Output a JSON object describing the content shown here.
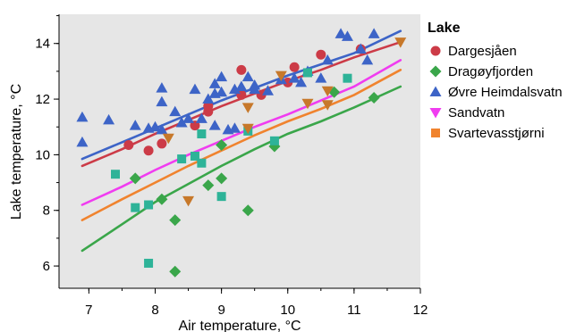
{
  "chart_data": {
    "type": "scatter",
    "xlabel": "Air temperature, °C",
    "ylabel": "Lake temperature, °C",
    "xlim": [
      6.55,
      12
    ],
    "ylim": [
      5.2,
      15.05
    ],
    "xticks": [
      7,
      8,
      9,
      10,
      11,
      12
    ],
    "yticks": [
      6,
      8,
      10,
      12,
      14
    ],
    "grid": false,
    "legend_title": "Lake",
    "legend_position": "right",
    "series": [
      {
        "name": "Dargesjåen",
        "marker": "circle",
        "color": "#cc3b47",
        "points": [
          [
            7.6,
            10.35
          ],
          [
            7.9,
            10.15
          ],
          [
            8.1,
            10.4
          ],
          [
            8.6,
            11.05
          ],
          [
            8.8,
            11.55
          ],
          [
            8.8,
            11.75
          ],
          [
            9.3,
            13.05
          ],
          [
            9.3,
            12.15
          ],
          [
            9.6,
            12.15
          ],
          [
            10.0,
            12.6
          ],
          [
            10.1,
            13.15
          ],
          [
            10.5,
            13.6
          ],
          [
            11.1,
            13.8
          ]
        ],
        "trend": [
          [
            6.9,
            9.6
          ],
          [
            7.5,
            10.2
          ],
          [
            8.0,
            10.75
          ],
          [
            8.5,
            11.25
          ],
          [
            9.0,
            11.75
          ],
          [
            9.5,
            12.2
          ],
          [
            10.0,
            12.65
          ],
          [
            10.5,
            13.05
          ],
          [
            11.0,
            13.5
          ],
          [
            11.7,
            14.05
          ]
        ]
      },
      {
        "name": "Dragøyfjorden",
        "marker": "diamond",
        "color": "#3aa64a",
        "points": [
          [
            7.7,
            9.15
          ],
          [
            8.1,
            8.4
          ],
          [
            8.3,
            7.65
          ],
          [
            8.3,
            5.8
          ],
          [
            8.8,
            8.9
          ],
          [
            9.0,
            9.15
          ],
          [
            9.0,
            10.35
          ],
          [
            9.4,
            8.0
          ],
          [
            9.8,
            10.3
          ],
          [
            10.7,
            12.25
          ],
          [
            11.3,
            12.05
          ]
        ],
        "trend": [
          [
            6.9,
            6.55
          ],
          [
            7.5,
            7.5
          ],
          [
            8.0,
            8.3
          ],
          [
            8.5,
            8.95
          ],
          [
            9.0,
            9.6
          ],
          [
            9.5,
            10.2
          ],
          [
            10.0,
            10.75
          ],
          [
            10.5,
            11.2
          ],
          [
            11.0,
            11.7
          ],
          [
            11.7,
            12.45
          ]
        ]
      },
      {
        "name": "Øvre Heimdalsvatn",
        "marker": "triangle-up",
        "color": "#3d64c7",
        "points": [
          [
            6.9,
            11.35
          ],
          [
            6.9,
            10.45
          ],
          [
            7.3,
            11.25
          ],
          [
            7.7,
            11.05
          ],
          [
            7.9,
            10.95
          ],
          [
            8.0,
            11.0
          ],
          [
            8.1,
            12.4
          ],
          [
            8.1,
            11.9
          ],
          [
            8.1,
            10.9
          ],
          [
            8.3,
            11.55
          ],
          [
            8.4,
            11.15
          ],
          [
            8.5,
            11.3
          ],
          [
            8.6,
            12.35
          ],
          [
            8.7,
            11.3
          ],
          [
            8.8,
            12.0
          ],
          [
            8.9,
            12.55
          ],
          [
            8.9,
            12.2
          ],
          [
            8.9,
            11.05
          ],
          [
            9.0,
            12.8
          ],
          [
            9.0,
            12.25
          ],
          [
            9.1,
            10.9
          ],
          [
            9.2,
            10.95
          ],
          [
            9.2,
            12.35
          ],
          [
            9.3,
            12.45
          ],
          [
            9.4,
            12.8
          ],
          [
            9.5,
            12.35
          ],
          [
            9.5,
            12.5
          ],
          [
            9.7,
            12.3
          ],
          [
            9.9,
            12.7
          ],
          [
            10.1,
            12.75
          ],
          [
            10.2,
            12.6
          ],
          [
            10.3,
            13.0
          ],
          [
            10.5,
            12.75
          ],
          [
            10.6,
            13.4
          ],
          [
            10.8,
            14.35
          ],
          [
            10.9,
            14.25
          ],
          [
            11.1,
            13.8
          ],
          [
            11.2,
            13.4
          ],
          [
            11.3,
            14.35
          ]
        ],
        "trend": [
          [
            6.9,
            9.85
          ],
          [
            7.5,
            10.45
          ],
          [
            8.0,
            10.95
          ],
          [
            8.5,
            11.45
          ],
          [
            9.0,
            11.95
          ],
          [
            9.5,
            12.4
          ],
          [
            10.0,
            12.85
          ],
          [
            10.5,
            13.25
          ],
          [
            11.0,
            13.65
          ],
          [
            11.7,
            14.45
          ]
        ]
      },
      {
        "name": "Sandvatn",
        "marker": "triangle-down",
        "color": "#f03cf0",
        "points": [],
        "trend": [
          [
            6.9,
            8.2
          ],
          [
            7.5,
            8.85
          ],
          [
            8.0,
            9.45
          ],
          [
            8.5,
            10.0
          ],
          [
            9.0,
            10.5
          ],
          [
            9.5,
            11.0
          ],
          [
            10.0,
            11.45
          ],
          [
            10.5,
            11.95
          ],
          [
            11.0,
            12.45
          ],
          [
            11.7,
            13.4
          ]
        ]
      },
      {
        "name": "Svartevasstjørni",
        "marker": "square",
        "color": "#f0832e",
        "points": [
          [
            7.4,
            9.3
          ],
          [
            7.7,
            8.1
          ],
          [
            7.9,
            8.2
          ],
          [
            7.9,
            6.1
          ],
          [
            8.4,
            9.85
          ],
          [
            8.6,
            9.95
          ],
          [
            8.7,
            9.7
          ],
          [
            8.7,
            10.75
          ],
          [
            9.0,
            8.5
          ],
          [
            9.4,
            10.85
          ],
          [
            9.8,
            10.5
          ],
          [
            10.3,
            12.95
          ],
          [
            10.9,
            12.75
          ]
        ],
        "trend": [
          [
            6.9,
            7.65
          ],
          [
            7.5,
            8.4
          ],
          [
            8.0,
            9.0
          ],
          [
            8.5,
            9.6
          ],
          [
            9.0,
            10.15
          ],
          [
            9.5,
            10.7
          ],
          [
            10.0,
            11.2
          ],
          [
            10.5,
            11.65
          ],
          [
            11.0,
            12.15
          ],
          [
            11.7,
            13.05
          ]
        ]
      },
      {
        "name": "Svartevasstjørni (triangles)",
        "legend": false,
        "marker": "triangle-down",
        "color": "#c7782a",
        "points": [
          [
            8.2,
            10.6
          ],
          [
            8.5,
            8.35
          ],
          [
            9.4,
            11.7
          ],
          [
            9.4,
            10.95
          ],
          [
            9.9,
            12.85
          ],
          [
            10.3,
            11.85
          ],
          [
            10.6,
            11.8
          ],
          [
            10.6,
            12.3
          ],
          [
            11.7,
            14.05
          ]
        ]
      }
    ],
    "square_color": "#2eb398"
  }
}
